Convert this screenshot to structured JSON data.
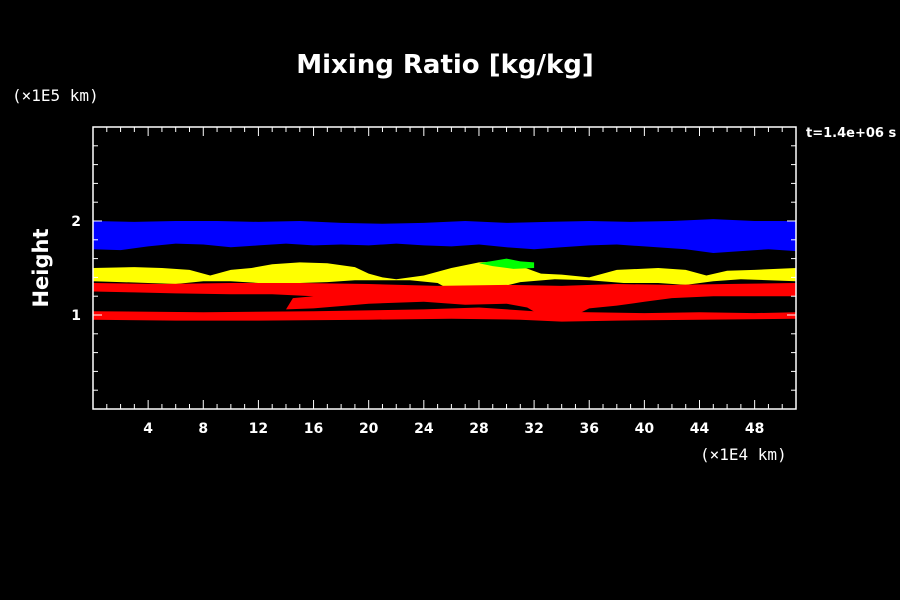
{
  "chart_data": {
    "type": "heatmap",
    "title": "Mixing Ratio [kg/kg]",
    "xlabel": "",
    "ylabel": "Height",
    "x_unit_label": "(×1E4 km)",
    "y_unit_label": "(×1E5 km)",
    "time_label": "t=1.4e+06 s",
    "xlim": [
      0,
      51
    ],
    "ylim": [
      0,
      3
    ],
    "xticks": [
      "4",
      "8",
      "12",
      "16",
      "20",
      "24",
      "28",
      "32",
      "36",
      "40",
      "44",
      "48"
    ],
    "xtick_values": [
      4,
      8,
      12,
      16,
      20,
      24,
      28,
      32,
      36,
      40,
      44,
      48
    ],
    "yticks": [
      "1",
      "2"
    ],
    "ytick_values": [
      1,
      2
    ],
    "grid": false,
    "legend": "none",
    "colors": {
      "background": "#000000",
      "blue": "#0000ff",
      "yellow": "#ffff00",
      "red": "#ff0000",
      "green": "#00ff00",
      "axes": "#ffffff"
    },
    "layers": [
      {
        "name": "blue",
        "color": "#0000ff",
        "points": [
          [
            0,
            2.0
          ],
          [
            3,
            1.99
          ],
          [
            6,
            2.0
          ],
          [
            9,
            2.0
          ],
          [
            12,
            1.99
          ],
          [
            15,
            2.0
          ],
          [
            18,
            1.98
          ],
          [
            21,
            1.97
          ],
          [
            24,
            1.98
          ],
          [
            27,
            2.0
          ],
          [
            30,
            1.98
          ],
          [
            33,
            1.99
          ],
          [
            36,
            2.0
          ],
          [
            39,
            1.99
          ],
          [
            42,
            2.0
          ],
          [
            45,
            2.02
          ],
          [
            48,
            2.0
          ],
          [
            51,
            2.0
          ],
          [
            51,
            1.68
          ],
          [
            49,
            1.7
          ],
          [
            47,
            1.68
          ],
          [
            45,
            1.66
          ],
          [
            43,
            1.7
          ],
          [
            40,
            1.73
          ],
          [
            38,
            1.75
          ],
          [
            36,
            1.74
          ],
          [
            34,
            1.72
          ],
          [
            32,
            1.7
          ],
          [
            30,
            1.72
          ],
          [
            28,
            1.75
          ],
          [
            26,
            1.73
          ],
          [
            24,
            1.74
          ],
          [
            22,
            1.76
          ],
          [
            20,
            1.74
          ],
          [
            18,
            1.75
          ],
          [
            16,
            1.74
          ],
          [
            14,
            1.76
          ],
          [
            12,
            1.74
          ],
          [
            10,
            1.72
          ],
          [
            8,
            1.75
          ],
          [
            6,
            1.76
          ],
          [
            4,
            1.73
          ],
          [
            2,
            1.69
          ],
          [
            0,
            1.7
          ]
        ]
      },
      {
        "name": "yellow",
        "color": "#ffff00",
        "points": [
          [
            0,
            1.5
          ],
          [
            3,
            1.51
          ],
          [
            5,
            1.5
          ],
          [
            7,
            1.48
          ],
          [
            8.5,
            1.42
          ],
          [
            10,
            1.48
          ],
          [
            11.5,
            1.5
          ],
          [
            13,
            1.54
          ],
          [
            15,
            1.56
          ],
          [
            17,
            1.55
          ],
          [
            19,
            1.51
          ],
          [
            20,
            1.44
          ],
          [
            21,
            1.4
          ],
          [
            22,
            1.38
          ],
          [
            24,
            1.42
          ],
          [
            26,
            1.5
          ],
          [
            28,
            1.56
          ],
          [
            29.5,
            1.57
          ],
          [
            31,
            1.52
          ],
          [
            32.5,
            1.44
          ],
          [
            34,
            1.43
          ],
          [
            36,
            1.4
          ],
          [
            38,
            1.48
          ],
          [
            41,
            1.5
          ],
          [
            43,
            1.48
          ],
          [
            44.5,
            1.42
          ],
          [
            46,
            1.47
          ],
          [
            48,
            1.48
          ],
          [
            51,
            1.5
          ],
          [
            51,
            1.36
          ],
          [
            47,
            1.38
          ],
          [
            45,
            1.36
          ],
          [
            43,
            1.32
          ],
          [
            41,
            1.34
          ],
          [
            38.5,
            1.34
          ],
          [
            36,
            1.37
          ],
          [
            33.5,
            1.38
          ],
          [
            31,
            1.35
          ],
          [
            28,
            1.24
          ],
          [
            26,
            1.26
          ],
          [
            25,
            1.34
          ],
          [
            23,
            1.37
          ],
          [
            19,
            1.37
          ],
          [
            17,
            1.35
          ],
          [
            15,
            1.34
          ],
          [
            12,
            1.34
          ],
          [
            10,
            1.36
          ],
          [
            8,
            1.36
          ],
          [
            6,
            1.33
          ],
          [
            4,
            1.34
          ],
          [
            2,
            1.35
          ],
          [
            0,
            1.36
          ]
        ]
      },
      {
        "name": "green",
        "color": "#00ff00",
        "points": [
          [
            28,
            1.55
          ],
          [
            30,
            1.6
          ],
          [
            31,
            1.57
          ],
          [
            32,
            1.56
          ],
          [
            32,
            1.5
          ],
          [
            30.5,
            1.49
          ],
          [
            29,
            1.52
          ]
        ]
      },
      {
        "name": "red-upper",
        "color": "#ff0000",
        "points": [
          [
            0,
            1.34
          ],
          [
            5,
            1.33
          ],
          [
            10,
            1.34
          ],
          [
            15,
            1.34
          ],
          [
            20,
            1.33
          ],
          [
            25,
            1.31
          ],
          [
            30,
            1.32
          ],
          [
            34,
            1.31
          ],
          [
            38,
            1.33
          ],
          [
            42,
            1.32
          ],
          [
            46,
            1.33
          ],
          [
            51,
            1.34
          ],
          [
            51,
            1.2
          ],
          [
            48,
            1.2
          ],
          [
            45,
            1.2
          ],
          [
            42,
            1.18
          ],
          [
            40,
            1.14
          ],
          [
            38,
            1.1
          ],
          [
            36,
            1.07
          ],
          [
            34.5,
            0.96
          ],
          [
            33,
            0.95
          ],
          [
            31.5,
            1.08
          ],
          [
            30,
            1.12
          ],
          [
            27,
            1.11
          ],
          [
            24,
            1.14
          ],
          [
            20,
            1.12
          ],
          [
            16,
            1.07
          ],
          [
            14,
            1.06
          ],
          [
            14.5,
            1.18
          ],
          [
            16,
            1.2
          ],
          [
            13,
            1.22
          ],
          [
            10,
            1.22
          ],
          [
            6,
            1.23
          ],
          [
            3,
            1.24
          ],
          [
            0,
            1.25
          ]
        ]
      },
      {
        "name": "red-lower",
        "color": "#ff0000",
        "points": [
          [
            0,
            1.04
          ],
          [
            8,
            1.03
          ],
          [
            16,
            1.04
          ],
          [
            24,
            1.06
          ],
          [
            28,
            1.08
          ],
          [
            32,
            1.04
          ],
          [
            36,
            1.03
          ],
          [
            40,
            1.02
          ],
          [
            44,
            1.03
          ],
          [
            48,
            1.02
          ],
          [
            51,
            1.03
          ],
          [
            51,
            0.96
          ],
          [
            44,
            0.95
          ],
          [
            38,
            0.94
          ],
          [
            34,
            0.93
          ],
          [
            31,
            0.95
          ],
          [
            26,
            0.96
          ],
          [
            20,
            0.95
          ],
          [
            12,
            0.94
          ],
          [
            6,
            0.94
          ],
          [
            0,
            0.95
          ]
        ]
      }
    ]
  }
}
